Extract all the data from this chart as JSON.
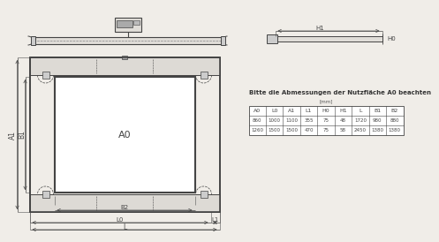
{
  "bg_color": "#f0ede8",
  "line_color": "#444444",
  "note_text": "Bitte die Abmessungen der Nutzfläche A0 beachten",
  "table_cols": [
    "A0",
    "L0",
    "A1",
    "L1",
    "H0",
    "H1",
    "L",
    "B1",
    "B2"
  ],
  "table_row1": [
    "860",
    "1000",
    "1100",
    "355",
    "75",
    "48",
    "1720",
    "980",
    "880"
  ],
  "table_row2": [
    "1260",
    "1500",
    "1500",
    "470",
    "75",
    "58",
    "2450",
    "1380",
    "1380"
  ],
  "label_A0": "A0",
  "label_A1": "A1",
  "label_B1": "B1",
  "label_B2": "B2",
  "label_L": "L",
  "label_L0": "L0",
  "label_L1": "L1",
  "label_H0": "H0",
  "label_H1": "H1"
}
